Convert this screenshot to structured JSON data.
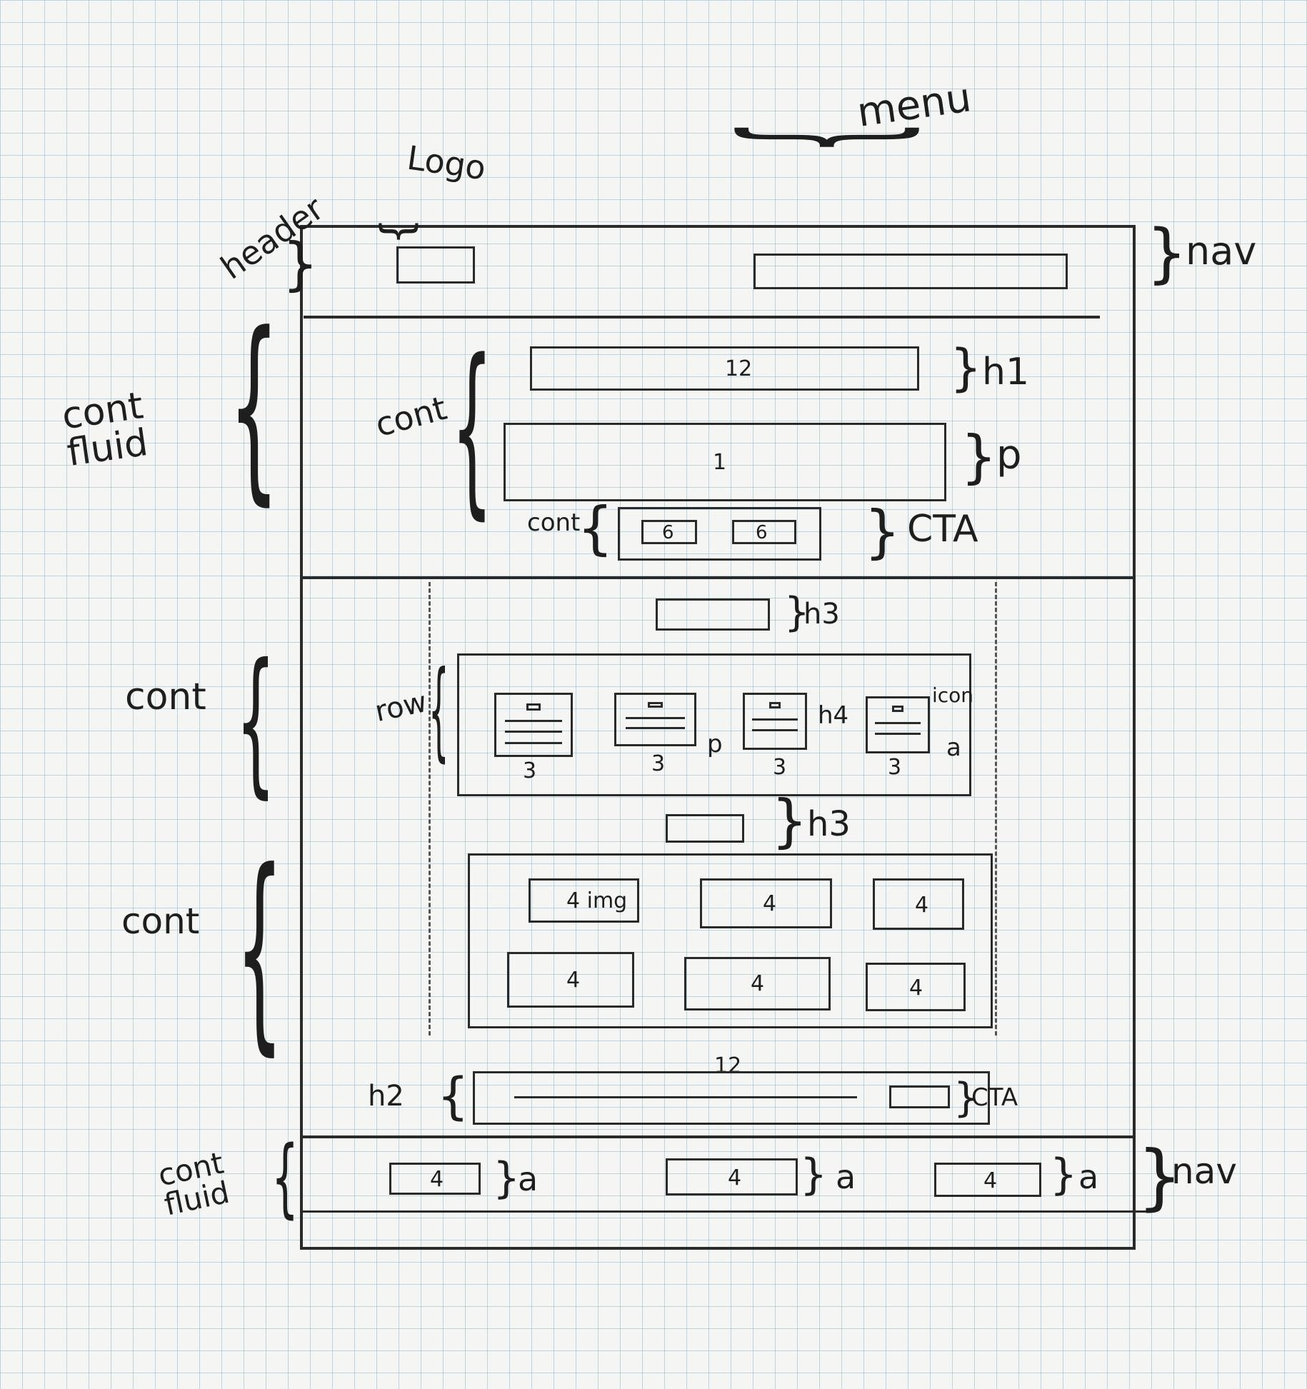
{
  "annotations": {
    "logo": "Logo",
    "menu": "menu",
    "header": "header",
    "nav_top": "nav",
    "cont_fluid_1": "cont fluid",
    "cont_hero": "cont",
    "h1": "h1",
    "p": "p",
    "cont_cta": "cont",
    "cta": "CTA",
    "h3_first": "h3",
    "cont_cards": "cont",
    "row": "row",
    "card_p": "p",
    "card_h4": "h4",
    "card_icon": "icon",
    "card_a": "a",
    "h3_second": "h3",
    "cont_grid": "cont",
    "h2": "h2",
    "cta_bottom": "CTA",
    "cont_fluid_2": "cont fluid",
    "nav_bottom": "nav",
    "footer_link_a": [
      "a",
      "a",
      "a"
    ]
  },
  "columns": {
    "h1_width": "12",
    "p_width": "1",
    "cta_buttons": [
      "6",
      "6"
    ],
    "cards": [
      "3",
      "3",
      "3",
      "3"
    ],
    "grid_row_1": [
      "4 img",
      "4",
      "4"
    ],
    "grid_row_2": [
      "4",
      "4",
      "4"
    ],
    "h2_width": "12",
    "footer_links": [
      "4",
      "4",
      "4"
    ]
  }
}
